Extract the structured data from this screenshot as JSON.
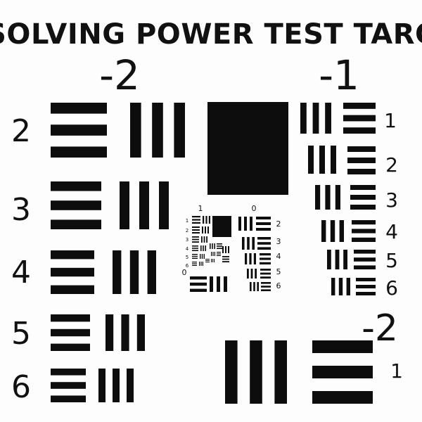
{
  "title": "RESOLVING POWER TEST TARGET",
  "groups": {
    "g_minus2": "-2",
    "g_minus1": "-1",
    "g_minus2b": "-2",
    "g_sub_pos1": "1",
    "g_sub_zero_top": "0",
    "g_sub_zero_left": "0",
    "g_sub_one_left": "1"
  },
  "elements": {
    "left": [
      "2",
      "3",
      "4",
      "5",
      "6"
    ],
    "right": [
      "1",
      "2",
      "3",
      "4",
      "5",
      "6"
    ],
    "bottom_right": "1",
    "inner_left": [
      "1",
      "2",
      "3",
      "4",
      "5",
      "6"
    ],
    "inner_right": [
      "2",
      "3",
      "4",
      "5",
      "6"
    ]
  }
}
